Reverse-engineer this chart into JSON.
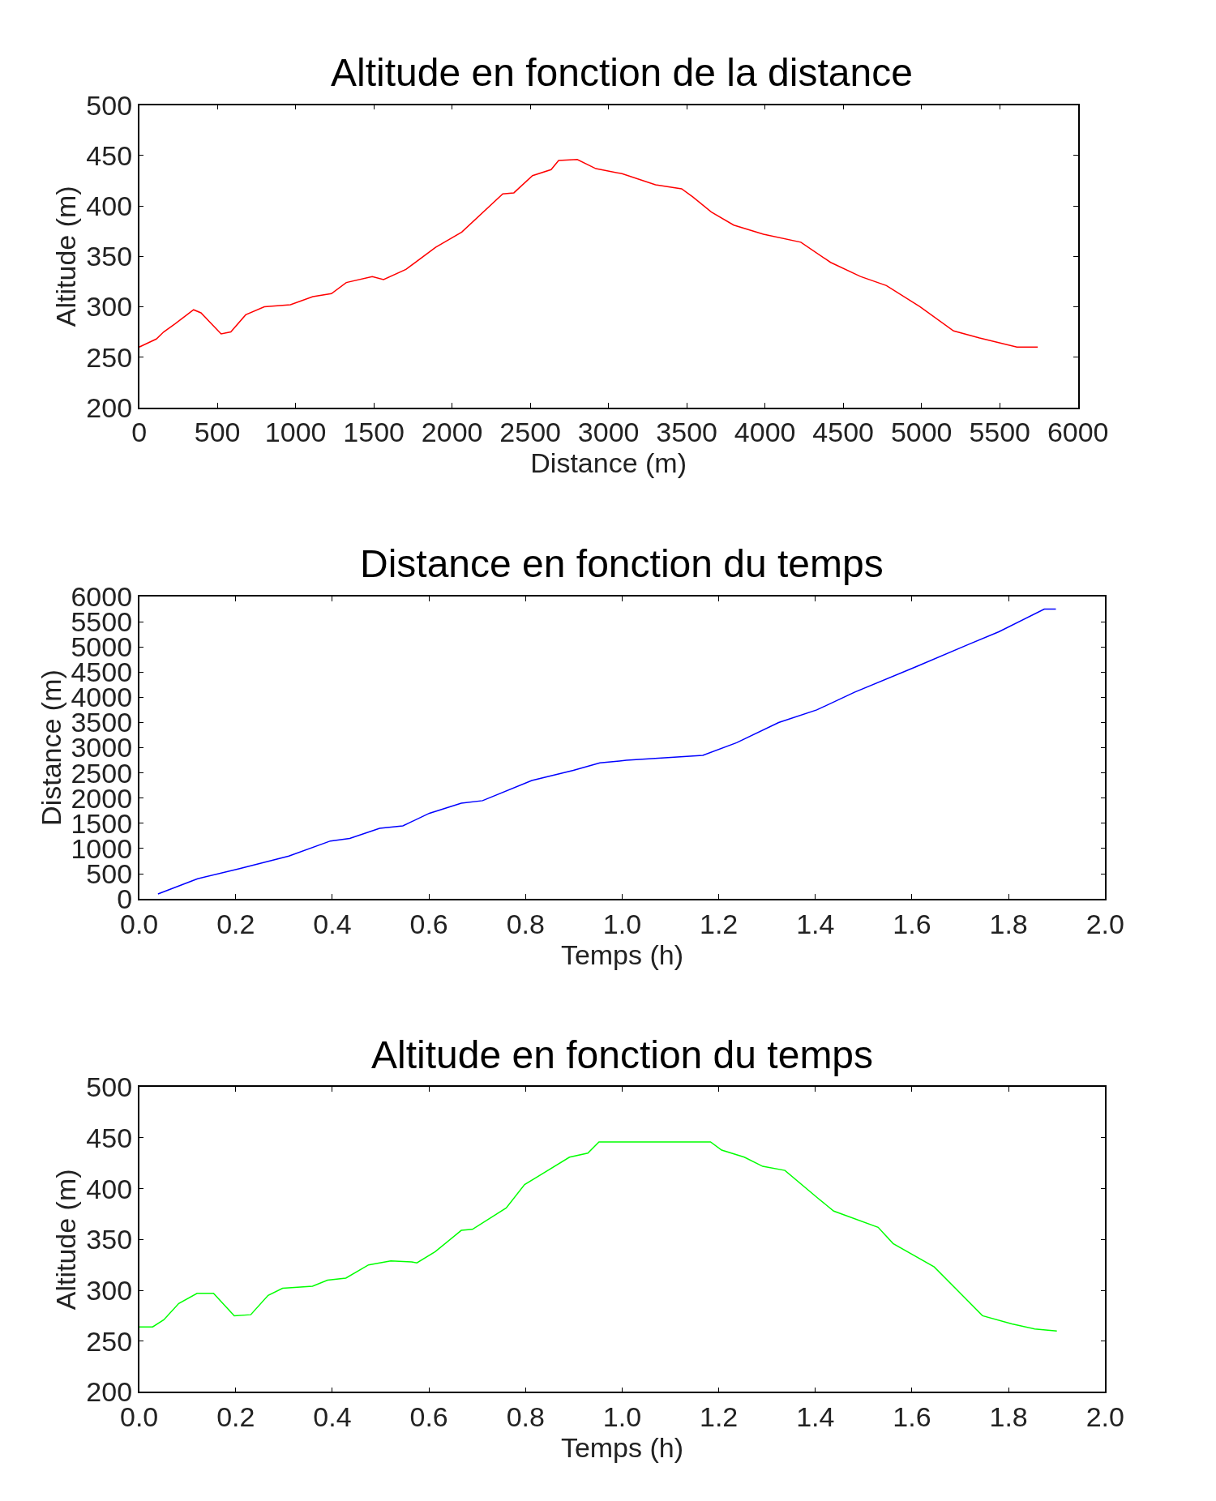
{
  "chart_data": [
    {
      "type": "line",
      "title": "Altitude en fonction de la distance",
      "xlabel": "Distance (m)",
      "ylabel": "Altitude (m)",
      "xlim": [
        0,
        6000
      ],
      "xticks": [
        0,
        500,
        1000,
        1500,
        2000,
        2500,
        3000,
        3500,
        4000,
        4500,
        5000,
        5500,
        6000
      ],
      "ylim": [
        200,
        500
      ],
      "yticks": [
        200,
        250,
        300,
        350,
        400,
        450,
        500
      ],
      "x": [
        0,
        110,
        157,
        229,
        348,
        395,
        524,
        586,
        681,
        800,
        967,
        1110,
        1229,
        1324,
        1490,
        1562,
        1705,
        1895,
        2062,
        2324,
        2395,
        2514,
        2633,
        2681,
        2800,
        2919,
        3086,
        3300,
        3467,
        3538,
        3657,
        3800,
        3990,
        4229,
        4419,
        4610,
        4776,
        4990,
        5205,
        5371,
        5610,
        5743
      ],
      "series": [
        {
          "color": "#ff0000",
          "values": [
            260,
            268,
            275,
            283,
            297,
            294,
            273,
            275,
            292,
            300,
            302,
            310,
            313,
            324,
            330,
            327,
            337,
            359,
            374,
            412,
            413,
            430,
            436,
            445,
            446,
            437,
            432,
            421,
            417,
            409,
            394,
            381,
            372,
            364,
            344,
            330,
            321,
            300,
            276,
            269,
            260,
            260
          ]
        }
      ]
    },
    {
      "type": "line",
      "title": "Distance en fonction du temps",
      "xlabel": "Temps (h)",
      "ylabel": "Distance (m)",
      "xlim": [
        0,
        2
      ],
      "xticks": [
        {
          "value": 0,
          "label": "0.0"
        },
        0.2,
        0.4,
        0.6,
        0.8,
        {
          "value": 1,
          "label": "1.0"
        },
        1.2,
        1.4,
        1.6,
        1.8,
        {
          "value": 2,
          "label": "2.0"
        }
      ],
      "ylim": [
        0,
        6000
      ],
      "yticks": [
        0,
        500,
        1000,
        1500,
        2000,
        2500,
        3000,
        3500,
        4000,
        4500,
        5000,
        5500,
        6000
      ],
      "x": [
        0.039,
        0.121,
        0.208,
        0.31,
        0.396,
        0.436,
        0.498,
        0.546,
        0.601,
        0.667,
        0.711,
        0.813,
        0.899,
        0.954,
        1.009,
        1.088,
        1.167,
        1.237,
        1.324,
        1.403,
        1.481,
        1.607,
        1.717,
        1.78,
        1.874,
        1.898
      ],
      "series": [
        {
          "color": "#0000ff",
          "values": [
            100,
            400,
            600,
            850,
            1150,
            1200,
            1400,
            1450,
            1700,
            1900,
            1950,
            2350,
            2550,
            2700,
            2750,
            2800,
            2850,
            3100,
            3500,
            3750,
            4100,
            4600,
            5050,
            5300,
            5750,
            5750
          ]
        }
      ]
    },
    {
      "type": "line",
      "title": "Altitude en fonction du temps",
      "xlabel": "Temps (h)",
      "ylabel": "Altitude (m)",
      "xlim": [
        0,
        2
      ],
      "xticks": [
        {
          "value": 0,
          "label": "0.0"
        },
        0.2,
        0.4,
        0.6,
        0.8,
        {
          "value": 1,
          "label": "1.0"
        },
        1.2,
        1.4,
        1.6,
        1.8,
        {
          "value": 2,
          "label": "2.0"
        }
      ],
      "ylim": [
        200,
        500
      ],
      "yticks": [
        200,
        250,
        300,
        350,
        400,
        450,
        500
      ],
      "x": [
        0,
        0.028,
        0.051,
        0.082,
        0.12,
        0.154,
        0.197,
        0.231,
        0.267,
        0.297,
        0.359,
        0.39,
        0.428,
        0.475,
        0.521,
        0.564,
        0.575,
        0.613,
        0.667,
        0.69,
        0.76,
        0.798,
        0.829,
        0.891,
        0.929,
        0.952,
        1.183,
        1.206,
        1.253,
        1.291,
        1.337,
        1.407,
        1.438,
        1.53,
        1.561,
        1.646,
        1.692,
        1.746,
        1.807,
        1.854,
        1.9
      ],
      "series": [
        {
          "color": "#00ff00",
          "values": [
            264,
            264,
            271,
            287,
            297,
            297,
            275,
            276,
            295,
            302,
            304,
            310,
            312,
            325,
            329,
            328,
            327,
            338,
            359,
            360,
            381,
            404,
            413,
            431,
            435,
            446,
            446,
            438,
            431,
            422,
            418,
            390,
            378,
            362,
            346,
            323,
            301,
            275,
            267,
            262,
            260
          ]
        }
      ]
    }
  ]
}
